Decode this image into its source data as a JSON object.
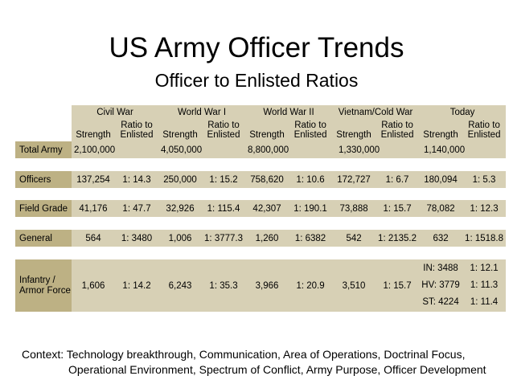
{
  "title": "US Army Officer Trends",
  "subtitle": "Officer to Enlisted Ratios",
  "eras": [
    "Civil War",
    "World War I",
    "World War II",
    "Vietnam/Cold War",
    "Today"
  ],
  "sub_headers": {
    "strength": "Strength",
    "ratio": "Ratio to Enlisted"
  },
  "rows": [
    {
      "label": "Total Army",
      "values": [
        "2,100,000",
        "",
        "4,050,000",
        "",
        "8,800,000",
        "",
        "1,330,000",
        "",
        "1,140,000",
        ""
      ]
    },
    {
      "label": "Officers",
      "values": [
        "137,254",
        "1: 14.3",
        "250,000",
        "1: 15.2",
        "758,620",
        "1: 10.6",
        "172,727",
        "1: 6.7",
        "180,094",
        "1: 5.3"
      ]
    },
    {
      "label": "Field Grade",
      "values": [
        "41,176",
        "1: 47.7",
        "32,926",
        "1: 115.4",
        "42,307",
        "1: 190.1",
        "73,888",
        "1: 15.7",
        "78,082",
        "1: 12.3"
      ]
    },
    {
      "label": "General",
      "values": [
        "564",
        "1: 3480",
        "1,006",
        "1: 3777.3",
        "1,260",
        "1: 6382",
        "542",
        "1: 2135.2",
        "632",
        "1: 1518.8"
      ]
    },
    {
      "label": "Infantry / Armor Force",
      "values": [
        "1,606",
        "1: 14.2",
        "6,243",
        "1: 35.3",
        "3,966",
        "1: 20.9",
        "3,510",
        "1: 15.7"
      ],
      "today_strength": [
        "IN: 3488",
        "HV: 3779",
        "ST: 4224"
      ],
      "today_ratio": [
        "1: 12.1",
        "1: 11.3",
        "1: 11.4"
      ]
    }
  ],
  "context": {
    "line1": "Context:  Technology breakthrough, Communication, Area of Operations, Doctrinal Focus,",
    "line2": "Operational Environment, Spectrum of Conflict, Army Purpose, Officer Development"
  }
}
